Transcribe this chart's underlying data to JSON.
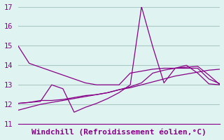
{
  "title": "Windchill (Refroidissement éolien,°C)",
  "background_color": "#dff4f0",
  "line_color": "#880088",
  "grid_color": "#aac8c4",
  "ylim": [
    11,
    17
  ],
  "yticks": [
    11,
    12,
    13,
    14,
    15,
    16,
    17
  ],
  "series": {
    "line1": [
      15.0,
      14.1,
      13.9,
      13.7,
      13.5,
      13.3,
      13.1,
      13.0,
      13.0,
      13.0,
      13.6,
      13.7,
      13.8,
      13.85,
      13.85,
      13.85,
      13.85,
      13.3,
      13.05
    ],
    "line2": [
      12.05,
      12.1,
      12.15,
      13.0,
      12.8,
      11.6,
      11.85,
      12.05,
      12.3,
      12.6,
      13.0,
      17.0,
      14.95,
      13.1,
      13.85,
      14.0,
      13.6,
      13.05,
      13.0
    ],
    "line3": [
      12.05,
      12.1,
      12.2,
      12.2,
      12.25,
      12.35,
      12.45,
      12.5,
      12.6,
      12.75,
      12.9,
      13.1,
      13.6,
      13.75,
      13.85,
      13.9,
      13.95,
      13.5,
      13.0
    ],
    "line4": [
      11.7,
      11.85,
      12.0,
      12.1,
      12.2,
      12.3,
      12.4,
      12.5,
      12.6,
      12.75,
      12.85,
      13.0,
      13.15,
      13.3,
      13.45,
      13.55,
      13.65,
      13.75,
      13.8
    ]
  },
  "title_fontsize": 8,
  "tick_fontsize": 7.5
}
